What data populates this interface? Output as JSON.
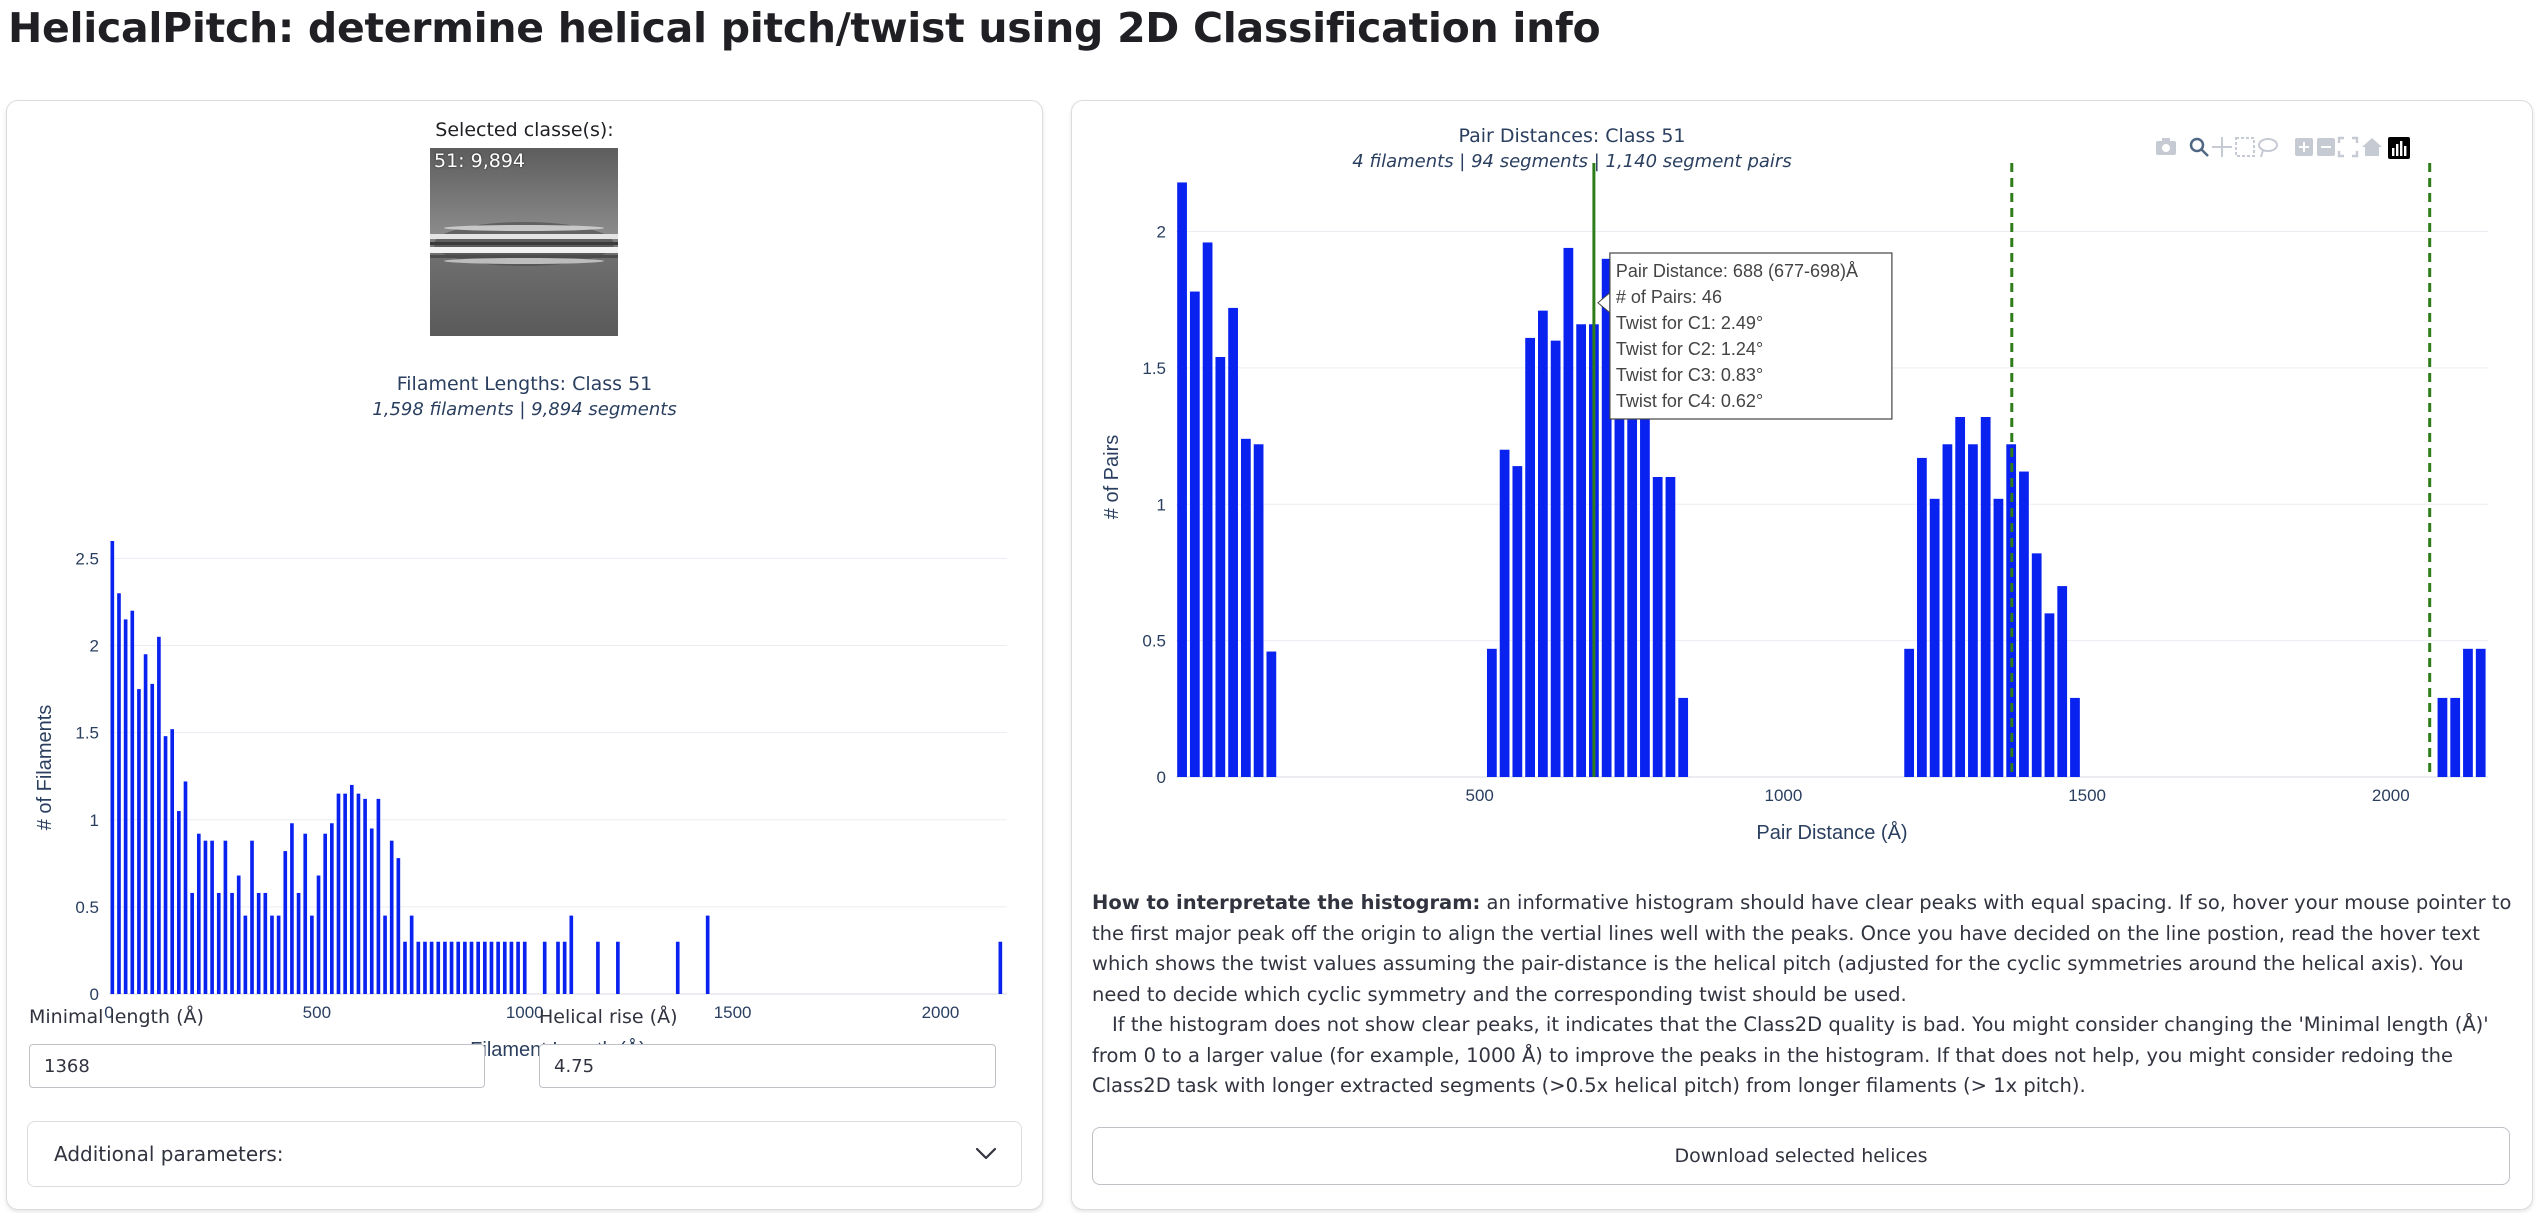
{
  "page": {
    "title": "HelicalPitch: determine helical pitch/twist using 2D Classification info"
  },
  "left_panel": {
    "selected_label": "Selected classe(s):",
    "thumbnail_caption": "51: 9,894",
    "chart_title": "Filament Lengths: Class 51",
    "chart_subtitle": "1,598 filaments | 9,894 segments",
    "min_length_label": "Minimal length (Å)",
    "min_length_value": "1368",
    "helical_rise_label": "Helical rise (Å)",
    "helical_rise_value": "4.75",
    "additional_params_label": "Additional parameters:"
  },
  "right_panel": {
    "chart_title": "Pair Distances: Class 51",
    "chart_subtitle": "4 filaments | 94 segments | 1,140 segment pairs",
    "tooltip": [
      "Pair Distance: 688 (677-698)Å",
      "# of Pairs: 46",
      "Twist for C1: 2.49°",
      "Twist for C2: 1.24°",
      "Twist for C3: 0.83°",
      "Twist for C4: 0.62°"
    ],
    "help_heading": "How to interpretate the histogram:",
    "help_p1": " an informative histogram should have clear peaks with equal spacing. If so, hover your mouse pointer to the first major peak off the origin to align the vertial lines well with the peaks. Once you have decided on the line postion, read the hover text which shows the twist values assuming the pair-distance is the helical pitch (adjusted for the cyclic symmetries around the helical axis). You need to decide which cyclic symmetry and the corresponding twist should be used.",
    "help_p2": "If the histogram does not show clear peaks, it indicates that the Class2D quality is bad. You might consider changing the 'Minimal length (Å)' from 0 to a larger value (for example, 1000 Å) to improve the peaks in the histogram. If that does not help, you might consider redoing the Class2D task with longer extracted segments (>0.5x helical pitch) from longer filaments (> 1x pitch).",
    "download_label": "Download selected helices"
  },
  "modebar": {
    "icons": [
      "camera-icon",
      "zoom-icon",
      "pan-icon",
      "box-select-icon",
      "lasso-select-icon",
      "zoom-in-icon",
      "zoom-out-icon",
      "autoscale-icon",
      "home-icon",
      "plotly-logo-icon"
    ]
  },
  "colors": {
    "bar": "#0a22f0",
    "pitch_line": "#2e7d1a",
    "grid": "#ebedf2",
    "axis_text": "#2a3f5f"
  },
  "chart_data": [
    {
      "type": "bar",
      "title": "Filament Lengths: Class 51",
      "subtitle": "1,598 filaments | 9,894 segments",
      "xlabel": "Filament Legnth (Å)",
      "ylabel": "# of Filaments",
      "xlim": [
        0,
        2160
      ],
      "ylim": [
        0,
        2.6
      ],
      "xticks": [
        0,
        500,
        1000,
        1500,
        2000
      ],
      "yticks": [
        0,
        0.5,
        1,
        1.5,
        2,
        2.5
      ],
      "bin_width": 16,
      "x": [
        8,
        24,
        40,
        56,
        72,
        88,
        104,
        120,
        136,
        152,
        168,
        184,
        200,
        216,
        232,
        248,
        264,
        280,
        296,
        312,
        328,
        344,
        360,
        376,
        392,
        408,
        424,
        440,
        456,
        472,
        488,
        504,
        520,
        536,
        552,
        568,
        584,
        600,
        616,
        632,
        648,
        664,
        680,
        696,
        712,
        728,
        744,
        760,
        776,
        792,
        808,
        824,
        840,
        856,
        872,
        888,
        904,
        920,
        936,
        952,
        968,
        984,
        1000,
        1048,
        1080,
        1096,
        1112,
        1176,
        1224,
        1368,
        1440,
        2144
      ],
      "values": [
        2.6,
        2.3,
        2.15,
        2.2,
        1.75,
        1.95,
        1.78,
        2.05,
        1.48,
        1.52,
        1.05,
        1.22,
        0.58,
        0.92,
        0.88,
        0.88,
        0.58,
        0.88,
        0.58,
        0.68,
        0.45,
        0.88,
        0.58,
        0.58,
        0.45,
        0.45,
        0.82,
        0.98,
        0.58,
        0.92,
        0.45,
        0.68,
        0.92,
        0.98,
        1.15,
        1.15,
        1.2,
        1.15,
        1.12,
        0.95,
        1.12,
        0.45,
        0.88,
        0.78,
        0.3,
        0.45,
        0.3,
        0.3,
        0.3,
        0.3,
        0.3,
        0.3,
        0.3,
        0.3,
        0.3,
        0.3,
        0.3,
        0.3,
        0.3,
        0.3,
        0.3,
        0.3,
        0.3,
        0.3,
        0.3,
        0.3,
        0.45,
        0.3,
        0.3,
        0.3,
        0.45,
        0.3
      ]
    },
    {
      "type": "bar",
      "title": "Pair Distances: Class 51",
      "subtitle": "4 filaments | 94 segments | 1,140 segment pairs",
      "xlabel": "Pair Distance (Å)",
      "ylabel": "# of Pairs",
      "xlim": [
        0,
        2160
      ],
      "ylim": [
        0,
        2.2
      ],
      "xticks": [
        500,
        1000,
        1500,
        2000
      ],
      "yticks": [
        0,
        0.5,
        1,
        1.5,
        2
      ],
      "bin_width": 21,
      "x": [
        10,
        31,
        52,
        73,
        94,
        115,
        136,
        157,
        178,
        520,
        541,
        562,
        583,
        604,
        625,
        646,
        667,
        688,
        709,
        730,
        751,
        772,
        793,
        814,
        835,
        856,
        1207,
        1228,
        1249,
        1270,
        1291,
        1312,
        1333,
        1354,
        1375,
        1396,
        1417,
        1438,
        1459,
        1480,
        1501,
        2085,
        2106,
        2127,
        2148
      ],
      "values": [
        2.18,
        1.78,
        1.96,
        1.54,
        1.72,
        1.24,
        1.22,
        0.46,
        0,
        0.47,
        1.2,
        1.14,
        1.61,
        1.71,
        1.6,
        1.94,
        1.66,
        1.66,
        1.9,
        1.82,
        1.76,
        1.35,
        1.1,
        1.1,
        0.29,
        0,
        0.47,
        1.17,
        1.02,
        1.22,
        1.32,
        1.22,
        1.32,
        1.02,
        1.22,
        1.12,
        0.82,
        0.6,
        0.7,
        0.29,
        0,
        0.29,
        0.29,
        0.47,
        0.47
      ],
      "vertical_lines": [
        688,
        1376,
        2064
      ],
      "highlighted_x": 688
    }
  ]
}
